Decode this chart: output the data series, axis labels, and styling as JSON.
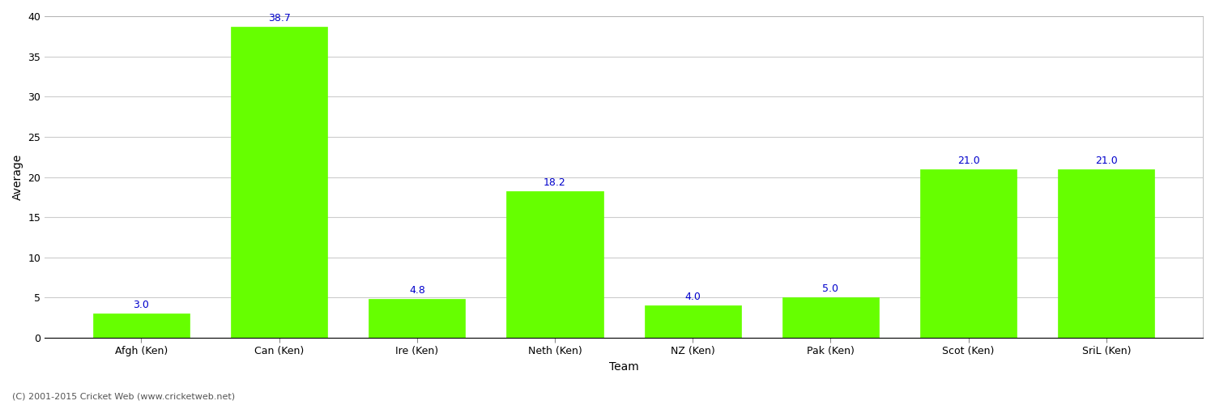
{
  "categories": [
    "Afgh (Ken)",
    "Can (Ken)",
    "Ire (Ken)",
    "Neth (Ken)",
    "NZ (Ken)",
    "Pak (Ken)",
    "Scot (Ken)",
    "SriL (Ken)"
  ],
  "values": [
    3.0,
    38.7,
    4.8,
    18.2,
    4.0,
    5.0,
    21.0,
    21.0
  ],
  "bar_color": "#66ff00",
  "bar_edge_color": "#66ff00",
  "xlabel": "Team",
  "ylabel": "Average",
  "ylim": [
    0,
    40
  ],
  "yticks": [
    0,
    5,
    10,
    15,
    20,
    25,
    30,
    35,
    40
  ],
  "label_color": "#0000cc",
  "label_fontsize": 9,
  "axis_label_fontsize": 10,
  "tick_fontsize": 9,
  "background_color": "#ffffff",
  "grid_color": "#cccccc",
  "footer_text": "(C) 2001-2015 Cricket Web (www.cricketweb.net)",
  "footer_fontsize": 8,
  "footer_color": "#555555",
  "bar_width": 0.7,
  "spine_color": "#aaaaaa"
}
